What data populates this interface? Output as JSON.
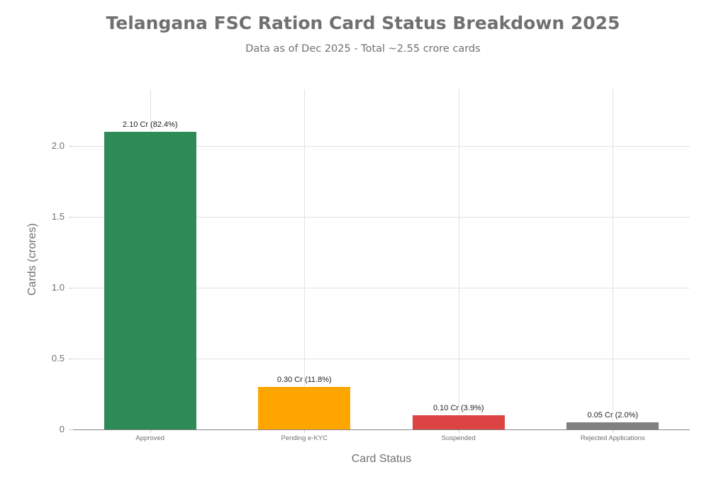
{
  "chart_data": {
    "type": "bar",
    "title": "Telangana FSC Ration Card Status Breakdown 2025",
    "subtitle": "Data as of Dec 2025 - Total ~2.55 crore cards",
    "xlabel": "Card Status",
    "ylabel": "Cards (crores)",
    "categories": [
      "Approved",
      "Pending e-KYC",
      "Suspended",
      "Rejected Applications"
    ],
    "values": [
      2.1,
      0.3,
      0.1,
      0.05
    ],
    "data_labels": [
      "2.10 Cr (82.4%)",
      "0.30 Cr (11.8%)",
      "0.10 Cr (3.9%)",
      "0.05 Cr (2.0%)"
    ],
    "colors": [
      "#2e8b57",
      "#ffa500",
      "#dc4444",
      "#808080"
    ],
    "yticks": [
      "0",
      "0.5",
      "1.0",
      "1.5",
      "2.0"
    ],
    "ylim": [
      0,
      2.4
    ],
    "grid": true,
    "legend": "none"
  }
}
